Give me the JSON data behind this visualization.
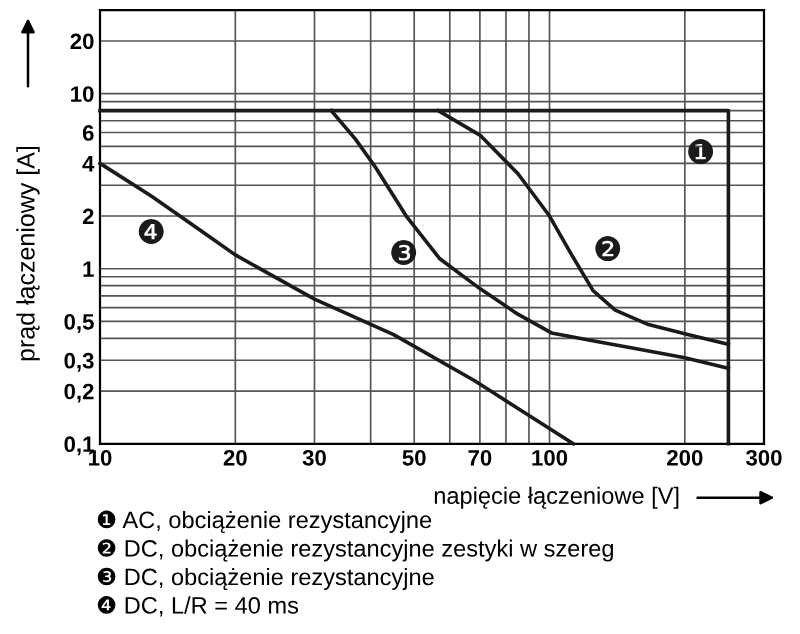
{
  "chart_data": {
    "type": "line",
    "log": "xy",
    "xlabel": "napięcie łączeniowe [V]",
    "ylabel": "prąd łączeniowy [A]",
    "series": [
      {
        "name": "❶",
        "color": "#1a1a1a",
        "x": [
          10,
          250,
          250
        ],
        "values": [
          8,
          8,
          0.1
        ]
      },
      {
        "name": "❷",
        "color": "#1a1a1a",
        "x": [
          56.5,
          70,
          85,
          100,
          112,
          125,
          140,
          166,
          204,
          250
        ],
        "values": [
          8,
          5.8,
          3.5,
          2.0,
          1.2,
          0.75,
          0.58,
          0.48,
          0.42,
          0.37
        ]
      },
      {
        "name": "❸",
        "color": "#1a1a1a",
        "x": [
          32.7,
          37,
          41,
          48,
          57,
          70,
          85,
          101,
          130,
          155,
          200,
          250
        ],
        "values": [
          8,
          5.5,
          3.8,
          2.0,
          1.14,
          0.77,
          0.55,
          0.43,
          0.38,
          0.35,
          0.31,
          0.27
        ]
      },
      {
        "name": "❹",
        "color": "#1a1a1a",
        "x": [
          10,
          13,
          16.5,
          20,
          30,
          45,
          68,
          113
        ],
        "values": [
          4,
          2.6,
          1.7,
          1.2,
          0.67,
          0.42,
          0.23,
          0.1
        ]
      }
    ],
    "xlim": [
      10,
      300
    ],
    "ylim": [
      0.1,
      30
    ],
    "xticks": [
      10,
      20,
      30,
      50,
      70,
      100,
      200,
      300
    ],
    "yticks": [
      {
        "value": 0.1,
        "label": "0,1"
      },
      {
        "value": 0.2,
        "label": "0,2"
      },
      {
        "value": 0.3,
        "label": "0,3"
      },
      {
        "value": 0.5,
        "label": "0,5"
      },
      1,
      2,
      4,
      6,
      10,
      20
    ],
    "grid": true,
    "marker": "none",
    "line_style": "solid",
    "annotations": [
      "❶ AC, obciążenie rezystancyjne",
      "❷ DC, obciążenie rezystancyjne zestyki w szereg",
      "❸ DC, obciążenie rezystancyjne",
      "❹ DC, L/R = 40 ms"
    ]
  }
}
